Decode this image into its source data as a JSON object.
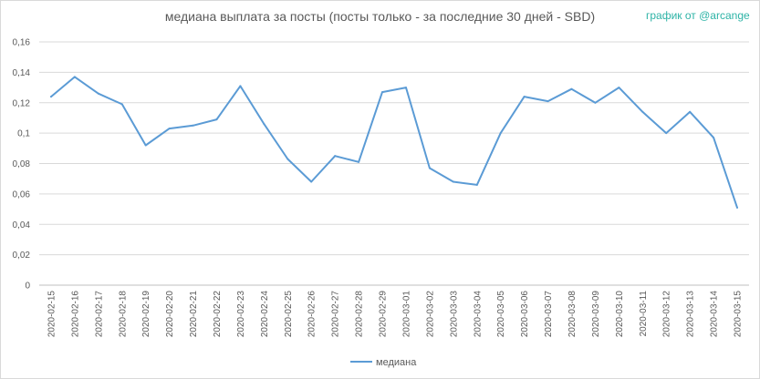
{
  "chart_data": {
    "type": "line",
    "title": "медиана выплата за посты  (посты только - за последние 30 дней - SBD)",
    "watermark": "график от @arcange",
    "xlabel": "",
    "ylabel": "",
    "ylim": [
      0,
      0.16
    ],
    "y_ticks": [
      "0",
      "0,02",
      "0,04",
      "0,06",
      "0,08",
      "0,1",
      "0,12",
      "0,14",
      "0,16"
    ],
    "grid": true,
    "legend_position": "bottom",
    "categories": [
      "2020-02-15",
      "2020-02-16",
      "2020-02-17",
      "2020-02-18",
      "2020-02-19",
      "2020-02-20",
      "2020-02-21",
      "2020-02-22",
      "2020-02-23",
      "2020-02-24",
      "2020-02-25",
      "2020-02-26",
      "2020-02-27",
      "2020-02-28",
      "2020-02-29",
      "2020-03-01",
      "2020-03-02",
      "2020-03-03",
      "2020-03-04",
      "2020-03-05",
      "2020-03-06",
      "2020-03-07",
      "2020-03-08",
      "2020-03-09",
      "2020-03-10",
      "2020-03-11",
      "2020-03-12",
      "2020-03-13",
      "2020-03-14",
      "2020-03-15"
    ],
    "series": [
      {
        "name": "медиана",
        "color": "#5b9bd5",
        "values": [
          0.124,
          0.137,
          0.126,
          0.119,
          0.092,
          0.103,
          0.105,
          0.109,
          0.131,
          0.106,
          0.083,
          0.068,
          0.085,
          0.081,
          0.127,
          0.13,
          0.077,
          0.068,
          0.066,
          0.1,
          0.124,
          0.121,
          0.129,
          0.12,
          0.13,
          0.114,
          0.1,
          0.114,
          0.097,
          0.051
        ]
      }
    ]
  }
}
